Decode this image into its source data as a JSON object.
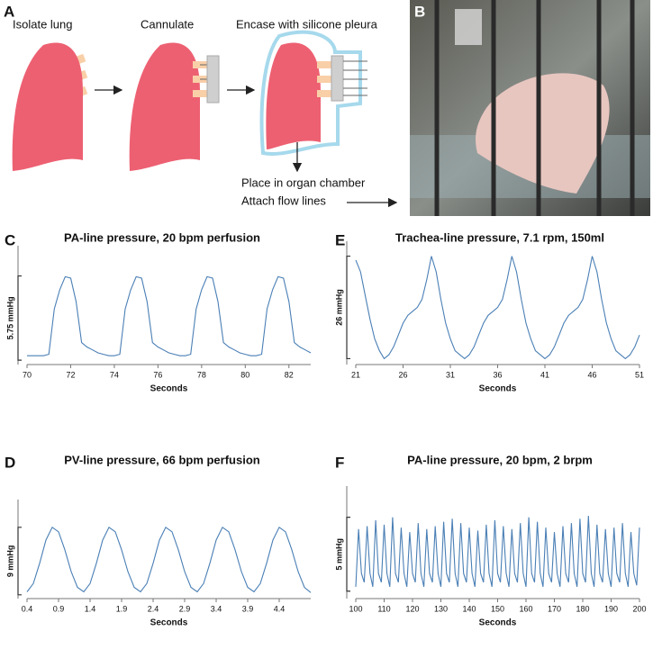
{
  "figure": {
    "panel_a": {
      "letter": "A",
      "steps": [
        "Isolate lung",
        "Cannulate",
        "Encase with silicone pleura"
      ],
      "notes": [
        "Place in organ chamber",
        "Attach flow lines"
      ]
    },
    "panel_b": {
      "letter": "B"
    }
  },
  "chart_data": [
    {
      "type": "line",
      "panel": "C",
      "title": "PA-line pressure, 20 bpm perfusion",
      "x_label": "Seconds",
      "scale_bar": {
        "value": 5.75,
        "label": "5.75 mmHg"
      },
      "color": "#4a7fb5",
      "xlim": [
        70,
        83
      ],
      "xticks": [
        70,
        72,
        74,
        76,
        78,
        80,
        82
      ],
      "ylim": [
        -0.3,
        7.2
      ],
      "x": [
        70,
        70.25,
        70.5,
        70.75,
        71,
        71.25,
        71.5,
        71.75,
        72,
        72.25,
        72.5,
        72.75,
        73,
        73.25,
        73.5,
        73.75,
        74,
        74.25,
        74.5,
        74.75,
        75,
        75.25,
        75.5,
        75.75,
        76,
        76.25,
        76.5,
        76.75,
        77,
        77.25,
        77.5,
        77.75,
        78,
        78.25,
        78.5,
        78.75,
        79,
        79.25,
        79.5,
        79.75,
        80,
        80.25,
        80.5,
        80.75,
        81,
        81.25,
        81.5,
        81.75,
        82,
        82.25,
        82.5,
        82.75,
        83
      ],
      "values": [
        0.3,
        0.3,
        0.3,
        0.3,
        0.4,
        3.5,
        4.8,
        5.7,
        5.6,
        4.0,
        1.2,
        0.9,
        0.7,
        0.5,
        0.4,
        0.3,
        0.3,
        0.4,
        3.5,
        4.8,
        5.7,
        5.6,
        4.0,
        1.2,
        0.9,
        0.7,
        0.5,
        0.4,
        0.3,
        0.3,
        0.4,
        3.5,
        4.8,
        5.7,
        5.6,
        4.0,
        1.2,
        0.9,
        0.7,
        0.5,
        0.4,
        0.3,
        0.3,
        0.4,
        3.5,
        4.8,
        5.7,
        5.6,
        4.0,
        1.2,
        0.9,
        0.7,
        0.5
      ]
    },
    {
      "type": "line",
      "panel": "E",
      "title": "Trachea-line pressure, 7.1 rpm, 150ml",
      "x_label": "Seconds",
      "scale_bar": {
        "value": 26,
        "label": "26 mmHg"
      },
      "color": "#4a7fb5",
      "xlim": [
        21,
        51
      ],
      "xticks": [
        21,
        26,
        31,
        36,
        41,
        46,
        51
      ],
      "ylim": [
        -1.5,
        27.5
      ],
      "x": [
        21,
        21.5,
        22,
        22.5,
        23,
        23.5,
        24,
        24.5,
        25,
        25.5,
        26,
        26.5,
        27,
        27.5,
        28,
        28.5,
        29,
        29.5,
        30,
        30.5,
        31,
        31.5,
        32,
        32.5,
        33,
        33.5,
        34,
        34.5,
        35,
        35.5,
        36,
        36.5,
        37,
        37.5,
        38,
        38.5,
        39,
        39.5,
        40,
        40.5,
        41,
        41.5,
        42,
        42.5,
        43,
        43.5,
        44,
        44.5,
        45,
        45.5,
        46,
        46.5,
        47,
        47.5,
        48,
        48.5,
        49,
        49.5,
        50,
        50.5,
        51
      ],
      "values": [
        25,
        22,
        16,
        10,
        5,
        2,
        0,
        1,
        3,
        6,
        9,
        11,
        12,
        13,
        15,
        20,
        26,
        22,
        15,
        9,
        5,
        2,
        1,
        0,
        1,
        3,
        6,
        9,
        11,
        12,
        13,
        15,
        20,
        26,
        22,
        15,
        9,
        5,
        2,
        1,
        0,
        1,
        3,
        6,
        9,
        11,
        12,
        13,
        15,
        20,
        26,
        22,
        15,
        9,
        5,
        2,
        1,
        0,
        1,
        3,
        6
      ]
    },
    {
      "type": "line",
      "panel": "D",
      "title": "PV-line pressure, 66 bpm perfusion",
      "x_label": "Seconds",
      "scale_bar": {
        "value": 9,
        "label": "9 mmHg"
      },
      "color": "#4a7fb5",
      "xlim": [
        0.4,
        4.9
      ],
      "xticks": [
        0.4,
        0.9,
        1.4,
        1.9,
        2.4,
        2.9,
        3.4,
        3.9,
        4.4
      ],
      "ylim": [
        -0.5,
        11.5
      ],
      "x": [
        0.4,
        0.5,
        0.6,
        0.7,
        0.8,
        0.9,
        1.0,
        1.1,
        1.2,
        1.3,
        1.4,
        1.5,
        1.6,
        1.7,
        1.8,
        1.9,
        2.0,
        2.1,
        2.2,
        2.3,
        2.4,
        2.5,
        2.6,
        2.7,
        2.8,
        2.9,
        3.0,
        3.1,
        3.2,
        3.3,
        3.4,
        3.5,
        3.6,
        3.7,
        3.8,
        3.9,
        4.0,
        4.1,
        4.2,
        4.3,
        4.4,
        4.5,
        4.6,
        4.7,
        4.8,
        4.9
      ],
      "values": [
        0.4,
        1.5,
        4.2,
        7.3,
        9,
        8.4,
        6,
        3.1,
        1.0,
        0.4,
        1.5,
        4.2,
        7.3,
        9,
        8.4,
        6,
        3.1,
        1.0,
        0.4,
        1.5,
        4.2,
        7.3,
        9,
        8.4,
        6,
        3.1,
        1.0,
        0.4,
        1.5,
        4.2,
        7.3,
        9,
        8.4,
        6,
        3.1,
        1.0,
        0.4,
        1.5,
        4.2,
        7.3,
        9,
        8.4,
        6,
        3.1,
        1.0,
        0.3
      ]
    },
    {
      "type": "line",
      "panel": "F",
      "title": "PA-line pressure, 20 bpm, 2 brpm",
      "x_label": "Seconds",
      "scale_bar": {
        "value": 5,
        "label": "5 mmHg"
      },
      "color": "#4a7fb5",
      "xlim": [
        100,
        200
      ],
      "xticks": [
        100,
        110,
        120,
        130,
        140,
        150,
        160,
        170,
        180,
        190,
        200
      ],
      "ylim": [
        -0.5,
        6.5
      ],
      "x": [
        100,
        101,
        102,
        103,
        104,
        105,
        106,
        107,
        108,
        109,
        110,
        111,
        112,
        113,
        114,
        115,
        116,
        117,
        118,
        119,
        120,
        121,
        122,
        123,
        124,
        125,
        126,
        127,
        128,
        129,
        130,
        131,
        132,
        133,
        134,
        135,
        136,
        137,
        138,
        139,
        140,
        141,
        142,
        143,
        144,
        145,
        146,
        147,
        148,
        149,
        150,
        151,
        152,
        153,
        154,
        155,
        156,
        157,
        158,
        159,
        160,
        161,
        162,
        163,
        164,
        165,
        166,
        167,
        168,
        169,
        170,
        171,
        172,
        173,
        174,
        175,
        176,
        177,
        178,
        179,
        180,
        181,
        182,
        183,
        184,
        185,
        186,
        187,
        188,
        189,
        190,
        191,
        192,
        193,
        194,
        195,
        196,
        197,
        198,
        199,
        200
      ],
      "values": [
        0.3,
        4.2,
        1.2,
        0.6,
        4.4,
        1.2,
        0.3,
        4.8,
        1.2,
        0.6,
        4.5,
        1.2,
        0.3,
        5.0,
        1.2,
        0.6,
        4.3,
        1.2,
        0.3,
        4.0,
        1.2,
        0.6,
        4.6,
        1.2,
        0.3,
        4.2,
        1.2,
        0.6,
        4.4,
        1.2,
        0.3,
        4.7,
        1.2,
        0.6,
        4.9,
        1.2,
        0.3,
        4.6,
        1.2,
        0.6,
        4.3,
        1.2,
        0.3,
        4.1,
        1.2,
        0.6,
        4.5,
        1.2,
        0.3,
        4.8,
        1.2,
        0.6,
        4.4,
        1.2,
        0.3,
        4.2,
        1.2,
        0.6,
        4.6,
        1.2,
        0.3,
        5.0,
        1.2,
        0.6,
        4.7,
        1.2,
        0.3,
        4.3,
        1.2,
        0.6,
        4.0,
        1.2,
        0.3,
        4.4,
        1.2,
        0.6,
        4.6,
        1.2,
        0.3,
        4.9,
        1.2,
        0.6,
        5.1,
        1.2,
        0.3,
        4.5,
        1.2,
        0.6,
        4.2,
        1.2,
        0.3,
        4.3,
        1.2,
        0.6,
        4.6,
        1.2,
        0.3,
        4.0,
        1.2,
        0.4,
        4.3
      ]
    }
  ]
}
